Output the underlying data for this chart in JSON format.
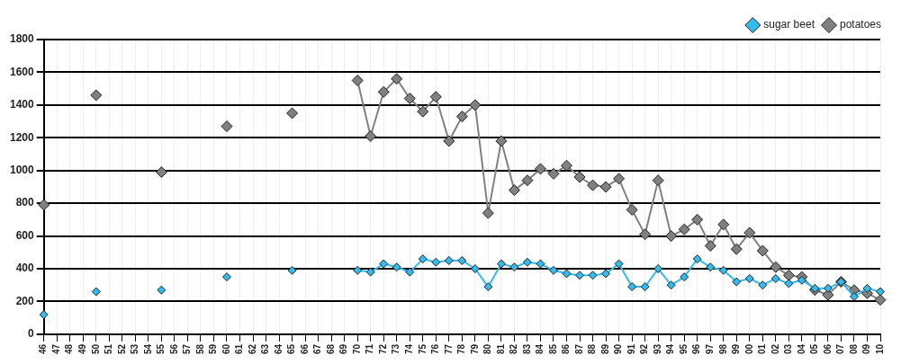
{
  "chart_data": {
    "type": "line",
    "categories": [
      "46",
      "47",
      "48",
      "49",
      "50",
      "51",
      "52",
      "53",
      "54",
      "55",
      "56",
      "57",
      "58",
      "59",
      "60",
      "61",
      "62",
      "63",
      "64",
      "65",
      "66",
      "67",
      "68",
      "69",
      "70",
      "71",
      "72",
      "73",
      "74",
      "75",
      "76",
      "77",
      "78",
      "79",
      "80",
      "81",
      "82",
      "83",
      "84",
      "85",
      "86",
      "87",
      "88",
      "89",
      "90",
      "91",
      "92",
      "93",
      "94",
      "95",
      "96",
      "97",
      "98",
      "99",
      "00",
      "01",
      "02",
      "03",
      "04",
      "05",
      "06",
      "07",
      "08",
      "09",
      "10"
    ],
    "series": [
      {
        "name": "potatoes",
        "color": "#808080",
        "values": [
          790,
          null,
          null,
          null,
          1460,
          null,
          null,
          null,
          null,
          990,
          null,
          null,
          null,
          null,
          1270,
          null,
          null,
          null,
          null,
          1350,
          null,
          null,
          null,
          null,
          1550,
          1210,
          1480,
          1560,
          1440,
          1360,
          1450,
          1180,
          1330,
          1400,
          740,
          1180,
          880,
          940,
          1010,
          980,
          1030,
          960,
          910,
          900,
          950,
          760,
          610,
          940,
          600,
          640,
          700,
          540,
          670,
          520,
          620,
          510,
          410,
          360,
          350,
          270,
          240,
          320,
          270,
          250,
          210
        ]
      },
      {
        "name": "sugar beet",
        "color": "#33bbee",
        "values": [
          120,
          null,
          null,
          null,
          260,
          null,
          null,
          null,
          null,
          270,
          null,
          null,
          null,
          null,
          350,
          null,
          null,
          null,
          null,
          390,
          null,
          null,
          null,
          null,
          390,
          380,
          430,
          410,
          380,
          460,
          440,
          450,
          450,
          400,
          290,
          430,
          410,
          440,
          430,
          390,
          370,
          360,
          360,
          370,
          430,
          290,
          290,
          400,
          300,
          350,
          460,
          410,
          390,
          320,
          340,
          300,
          340,
          310,
          330,
          280,
          280,
          320,
          230,
          280,
          260
        ]
      }
    ],
    "ylim": [
      0,
      1800
    ],
    "yticks": [
      0,
      200,
      400,
      600,
      800,
      1000,
      1200,
      1400,
      1600,
      1800
    ],
    "grid": true,
    "legend": "top right",
    "marker": "diamond",
    "line_style": "solid"
  }
}
